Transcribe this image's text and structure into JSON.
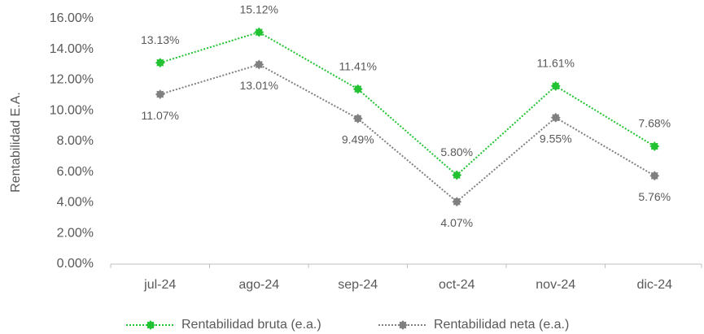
{
  "chart_data": {
    "type": "line",
    "y_label": "Rentabilidad E.A.",
    "categories": [
      "jul-24",
      "ago-24",
      "sep-24",
      "oct-24",
      "nov-24",
      "dic-24"
    ],
    "series": [
      {
        "name": "Rentabilidad bruta (e.a.)",
        "color": "#22c232",
        "values": [
          13.13,
          15.12,
          11.41,
          5.8,
          11.61,
          7.68
        ],
        "value_labels": [
          "13.13%",
          "15.12%",
          "11.41%",
          "5.80%",
          "11.61%",
          "7.68%"
        ],
        "label_position": "above"
      },
      {
        "name": "Rentabilidad neta (e.a.)",
        "color": "#808080",
        "values": [
          11.07,
          13.01,
          9.49,
          4.07,
          9.55,
          5.76
        ],
        "value_labels": [
          "11.07%",
          "13.01%",
          "9.49%",
          "4.07%",
          "9.55%",
          "5.76%"
        ],
        "label_position": "below"
      }
    ],
    "ylim": [
      0,
      16
    ],
    "yticks": [
      {
        "value": 0,
        "label": "0.00%"
      },
      {
        "value": 2,
        "label": "2.00%"
      },
      {
        "value": 4,
        "label": "4.00%"
      },
      {
        "value": 6,
        "label": "6.00%"
      },
      {
        "value": 8,
        "label": "8.00%"
      },
      {
        "value": 10,
        "label": "10.00%"
      },
      {
        "value": 12,
        "label": "12.00%"
      },
      {
        "value": 14,
        "label": "14.00%"
      },
      {
        "value": 16,
        "label": "16.00%"
      }
    ],
    "grid": false,
    "legend": "bottom"
  }
}
